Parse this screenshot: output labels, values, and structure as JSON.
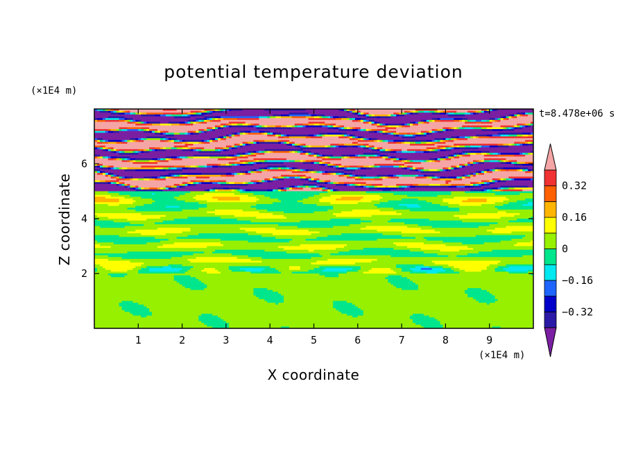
{
  "chart_data": {
    "type": "heatmap",
    "title": "potential temperature deviation",
    "time_label": "t=8.478e+06 s",
    "xlabel": "X coordinate",
    "ylabel": "Z coordinate",
    "x_unit": "(×1E4 m)",
    "y_unit": "(×1E4 m)",
    "xlim": [
      0,
      10
    ],
    "ylim": [
      0,
      8
    ],
    "x_ticks": [
      "1",
      "2",
      "3",
      "4",
      "5",
      "6",
      "7",
      "8",
      "9"
    ],
    "y_ticks": [
      "2",
      "4",
      "6"
    ],
    "colorbar": {
      "tick_labels": [
        "0.32",
        "0.16",
        "0",
        "-0.16",
        "-0.32"
      ],
      "tick_values": [
        0.32,
        0.16,
        0,
        -0.16,
        -0.32
      ],
      "levels": [
        -0.4,
        -0.32,
        -0.24,
        -0.16,
        -0.08,
        0,
        0.08,
        0.16,
        0.24,
        0.32,
        0.4
      ],
      "colors": [
        "#7b1fa2",
        "#2a1aa6",
        "#0000c8",
        "#1e64ff",
        "#00e8f0",
        "#00e68c",
        "#96f000",
        "#ffff00",
        "#ffb400",
        "#ff6000",
        "#f03232",
        "#f5a5a5"
      ],
      "extend": "both"
    },
    "bands_description_values": {
      "lower_layer_mean": 0.02,
      "upper_layer_amplitude": 0.45,
      "interface_heights": [
        2.0,
        5.0
      ]
    }
  }
}
